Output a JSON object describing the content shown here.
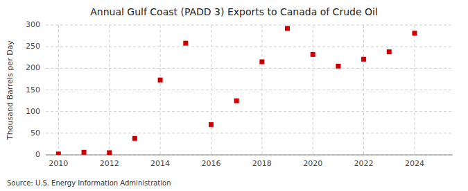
{
  "chart_data": {
    "type": "scatter",
    "title": "Annual Gulf Coast (PADD 3) Exports to Canada of Crude Oil",
    "ylabel": "Thousand Barrels per Day",
    "annotations": [
      "Source: U.S. Energy Information Administration"
    ],
    "x": [
      2010,
      2011,
      2012,
      2013,
      2014,
      2015,
      2016,
      2017,
      2018,
      2019,
      2020,
      2021,
      2022,
      2023,
      2024
    ],
    "values": [
      2,
      6,
      5,
      38,
      173,
      258,
      70,
      125,
      215,
      292,
      232,
      205,
      221,
      238,
      281
    ],
    "color": "#cc0000",
    "marker": "square",
    "xlim": [
      2009.5,
      2025.5
    ],
    "ylim": [
      0,
      300
    ],
    "xticks": [
      2010,
      2012,
      2014,
      2016,
      2018,
      2020,
      2022,
      2024
    ],
    "yticks": [
      0,
      50,
      100,
      150,
      200,
      250,
      300
    ],
    "grid": true
  }
}
